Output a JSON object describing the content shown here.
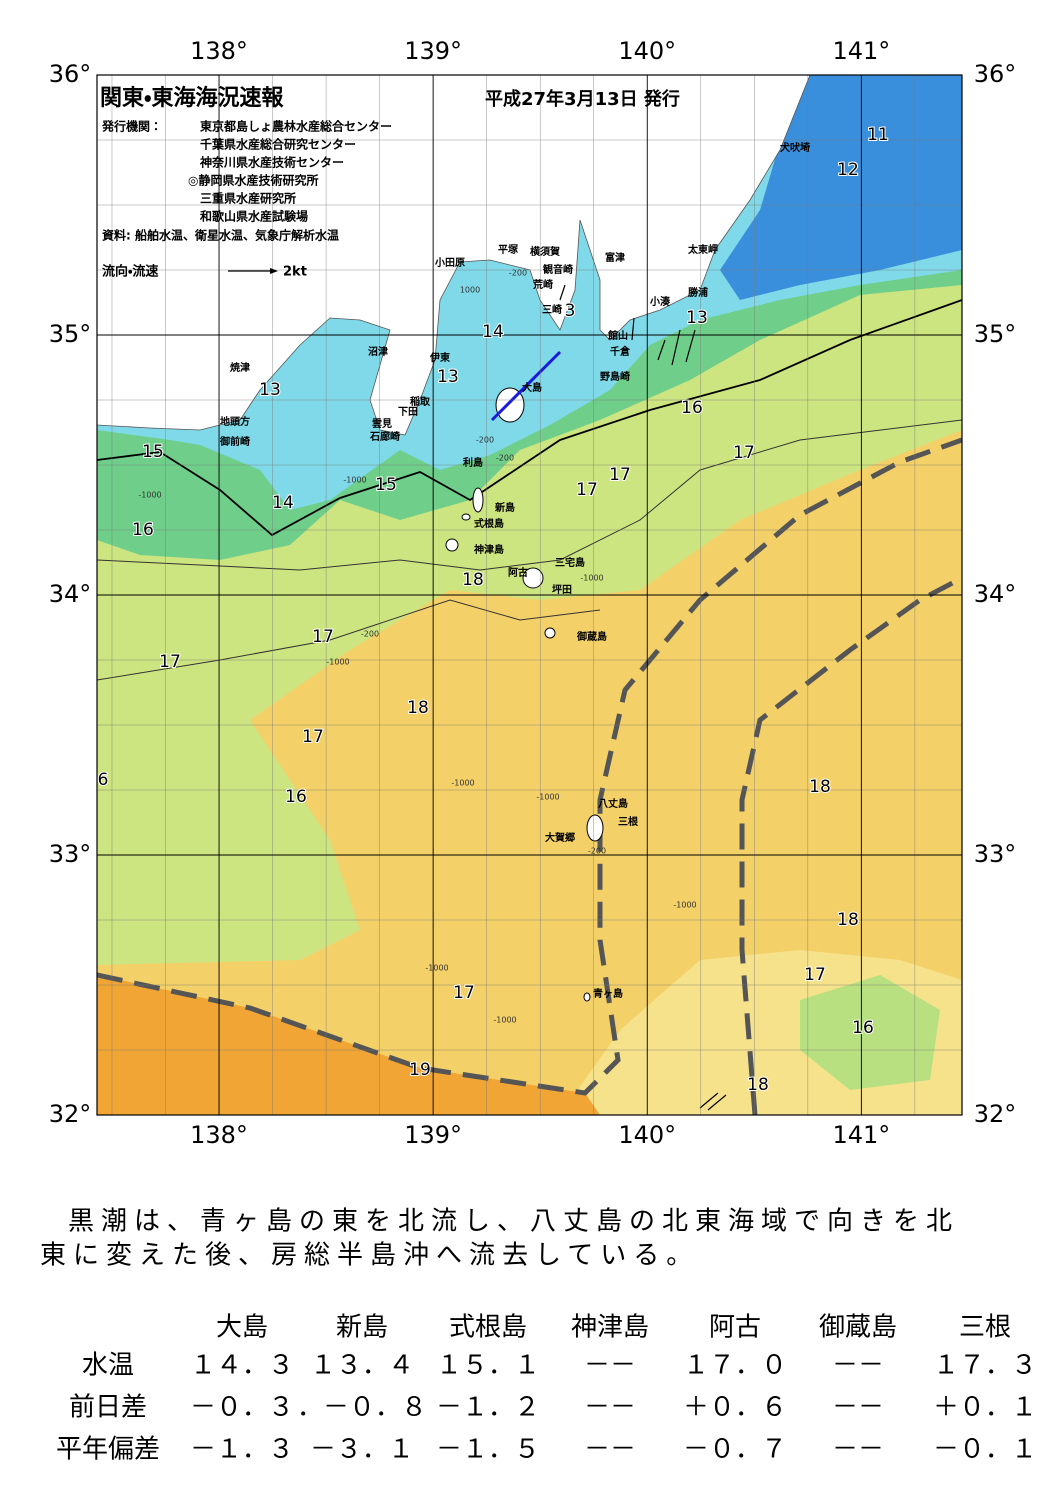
{
  "map": {
    "title": "関東・東海海況速報",
    "date": "平成27年3月13日 発行",
    "publisher_label": "発行機関：",
    "publishers": [
      "東京都島しょ農林水産総合センター",
      "千葉県水産総合研究センター",
      "神奈川県水産技術センター",
      "◎静岡県水産技術研究所",
      "三重県水産研究所",
      "和歌山県水産試験場"
    ],
    "source": "資料: 船舶水温、衛星水温、気象庁解析水温",
    "legend_label": "流向・流速",
    "legend_scale": "2kt",
    "xlim": [
      137.43,
      141.47
    ],
    "ylim": [
      32,
      36
    ],
    "xticks": [
      {
        "value": 138,
        "label": "138°"
      },
      {
        "value": 139,
        "label": "139°"
      },
      {
        "value": 140,
        "label": "140°"
      },
      {
        "value": 141,
        "label": "141°"
      }
    ],
    "yticks": [
      {
        "value": 32,
        "label": "32°"
      },
      {
        "value": 33,
        "label": "33°"
      },
      {
        "value": 34,
        "label": "34°"
      },
      {
        "value": 35,
        "label": "35°"
      },
      {
        "value": 36,
        "label": "36°"
      }
    ],
    "place_names": [
      "犬吠埼",
      "太東岬",
      "勝浦",
      "小湊",
      "富津",
      "館山",
      "千倉",
      "野島崎",
      "横須賀",
      "観音崎",
      "平塚",
      "荒崎",
      "三崎",
      "小田原",
      "沼津",
      "伊東",
      "稲取",
      "下田",
      "雲見",
      "石廊崎",
      "焼津",
      "地頭方",
      "御前崎",
      "大島",
      "利島",
      "新島",
      "式根島",
      "神津島",
      "三宅島",
      "阿古",
      "坪田",
      "御蔵島",
      "八丈島",
      "三根",
      "大賀郷",
      "青ヶ島"
    ],
    "isotherm_labels": [
      "11",
      "12",
      "3",
      "13",
      "14",
      "13",
      "13",
      "16",
      "17",
      "17",
      "17",
      "15",
      "15",
      "14",
      "16",
      "18",
      "17",
      "17",
      "18",
      "17",
      "6",
      "16",
      "18",
      "18",
      "17",
      "17",
      "16",
      "19",
      "18"
    ],
    "depth_labels": [
      "-200",
      "1000",
      "-200",
      "-200",
      "-1000",
      "-1000",
      "-200",
      "-1000",
      "-1000",
      "-1000",
      "-1000",
      "-1000",
      "-1000",
      "-1000",
      "-200"
    ]
  },
  "text": {
    "lines": [
      "黒潮は、青ヶ島の東を北流し、八丈島の北東海域で向きを北",
      "東に変えた後、房総半島沖へ流去している。"
    ]
  },
  "table": {
    "header": [
      "大島",
      "新島",
      "式根島",
      "神津島",
      "阿古",
      "御蔵島",
      "三根"
    ],
    "rows": [
      [
        "水温",
        "１４．３",
        "１３．４",
        "１５．１",
        "－－",
        "１７．０",
        "－－",
        "１７．３"
      ],
      [
        "前日差",
        "－０．３",
        "．－０．８",
        "－１．２",
        "－－",
        "＋０．６",
        "－－",
        "＋０．１"
      ],
      [
        "平年偏差",
        "－１．３",
        "－３．１",
        "－１．５",
        "－－",
        "－０．７",
        "－－",
        "－０．１"
      ]
    ]
  }
}
